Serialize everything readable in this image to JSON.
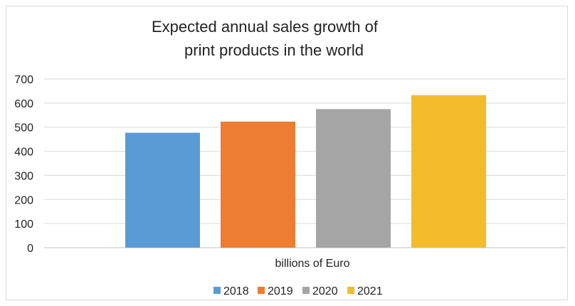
{
  "chart_data": {
    "type": "bar",
    "title": "Expected annual sales growth of print products in the world",
    "title_lines": [
      "Expected annual sales growth of",
      "print products in the world"
    ],
    "xlabel": "billions of Euro",
    "ylabel": "",
    "categories": [
      "billions of Euro"
    ],
    "series": [
      {
        "name": "2018",
        "values": [
          477
        ],
        "color": "#5b9bd5"
      },
      {
        "name": "2019",
        "values": [
          523
        ],
        "color": "#ed7d31"
      },
      {
        "name": "2020",
        "values": [
          575
        ],
        "color": "#a5a5a5"
      },
      {
        "name": "2021",
        "values": [
          633
        ],
        "color": "#f4bc2c"
      }
    ],
    "ylim": [
      0,
      700
    ],
    "yticks": [
      "0",
      "100",
      "200",
      "300",
      "400",
      "500",
      "600",
      "700"
    ],
    "grid": true,
    "legend_position": "bottom"
  }
}
